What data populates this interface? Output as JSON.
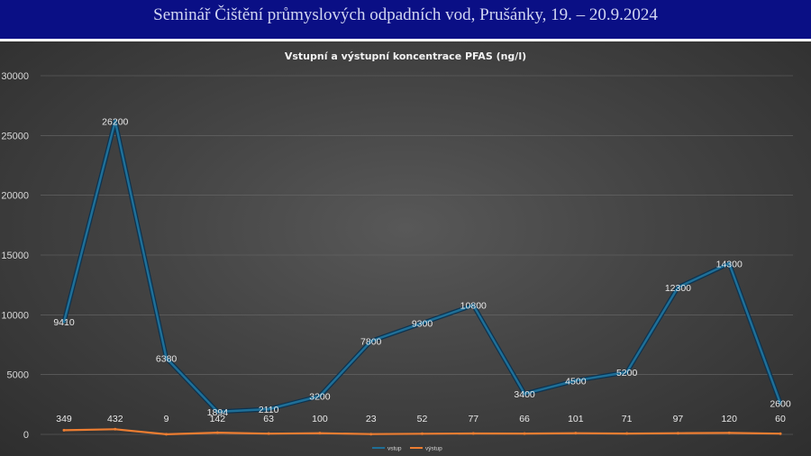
{
  "header": {
    "title": "Seminář Čištění průmyslových odpadních vod, Prušánky, 19. – 20.9.2024",
    "background": "#0a0f85"
  },
  "chart_data": {
    "type": "line",
    "title": "Vstupní a výstupní koncentrace PFAS (ng/l)",
    "xlabel": "",
    "ylabel": "",
    "ylim": [
      0,
      30000
    ],
    "yticks": [
      0,
      5000,
      10000,
      15000,
      20000,
      25000,
      30000
    ],
    "grid": true,
    "legend": "bottom",
    "series": [
      {
        "name": "vstup",
        "color": "#1f6f97",
        "values": [
          9410,
          26200,
          6380,
          1894,
          2110,
          3200,
          7800,
          9300,
          10800,
          3400,
          4500,
          5200,
          12300,
          14300,
          2600
        ]
      },
      {
        "name": "výstup",
        "color": "#ed7d31",
        "values": [
          349,
          432,
          9,
          142,
          63,
          100,
          23,
          52,
          77,
          66,
          101,
          71,
          97,
          120,
          60
        ]
      }
    ]
  }
}
